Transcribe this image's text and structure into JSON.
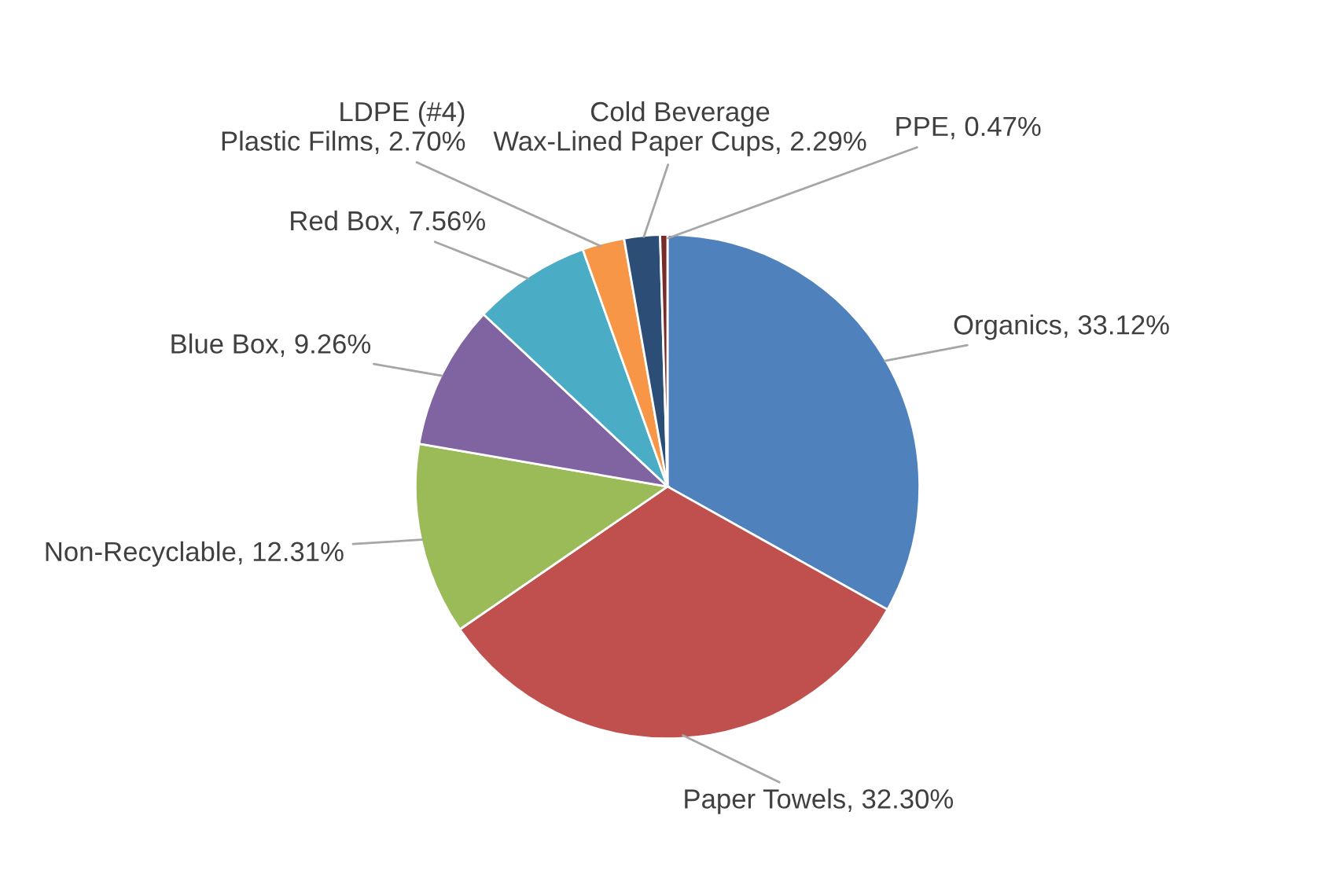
{
  "chart_data": {
    "type": "pie",
    "categories": [
      "Organics",
      "Paper Towels",
      "Non-Recyclable",
      "Blue Box",
      "Red Box",
      "LDPE (#4) Plastic Films",
      "Cold Beverage Wax-Lined Paper Cups",
      "PPE"
    ],
    "values": [
      33.12,
      32.3,
      12.31,
      9.26,
      7.56,
      2.7,
      2.29,
      0.47
    ],
    "value_labels": [
      "33.12%",
      "32.30%",
      "12.31%",
      "9.26%",
      "7.56%",
      "2.70%",
      "2.29%",
      "0.47%"
    ],
    "colors": [
      "#4f81bd",
      "#c0504d",
      "#9bbb59",
      "#8064a2",
      "#4bacc6",
      "#f79646",
      "#2c4d75",
      "#772c2a"
    ]
  }
}
